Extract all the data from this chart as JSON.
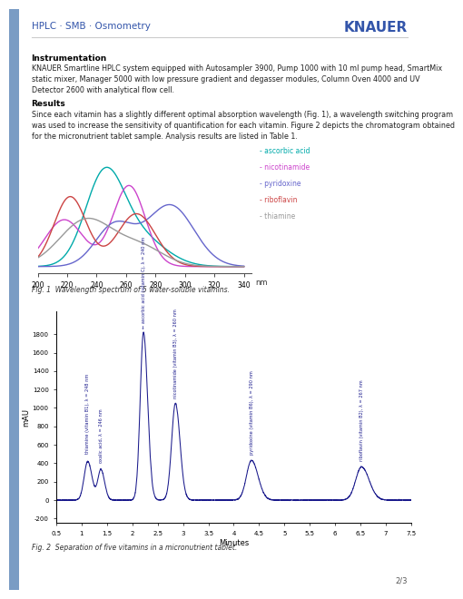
{
  "title_header": "HPLC · SMB · Osmometry",
  "instrumentation_title": "Instrumentation",
  "instrumentation_text": "KNAUER Smartline HPLC system equipped with Autosampler 3900, Pump 1000 with 10 ml pump head, SmartMix\nstatic mixer, Manager 5000 with low pressure gradient and degasser modules, Column Oven 4000 and UV\nDetector 2600 with analytical flow cell.",
  "results_title": "Results",
  "results_text": "Since each vitamin has a slightly different optimal absorption wavelength (Fig. 1), a wavelength switching program\nwas used to increase the sensitivity of quantification for each vitamin. Figure 2 depicts the chromatogram obtained\nfor the micronutrient tablet sample. Analysis results are listed in Table 1.",
  "fig1_caption": "Fig. 1  Wavelength spectrum of 5 water-soluble vitamins.",
  "fig2_caption": "Fig. 2  Separation of five vitamins in a micronutrient tablet.",
  "page_number": "2/3",
  "left_bar_color": "#7a9cc4",
  "background_color": "#ffffff",
  "header_line_color": "#cccccc",
  "spectrum_colors": {
    "ascorbic_acid": "#00aaaa",
    "nicotinamide": "#cc44cc",
    "pyridoxine": "#6666cc",
    "riboflavin": "#cc4444",
    "thiamine": "#999999"
  },
  "chromatogram_color": "#1a1a8c",
  "ylabel_chrom": "mAU",
  "xlabel_chrom": "Minutes",
  "chrom_yticks": [
    -200,
    0,
    200,
    400,
    600,
    800,
    1000,
    1200,
    1400,
    1600,
    1800
  ],
  "chrom_xticks": [
    0.5,
    1.0,
    1.5,
    2.0,
    2.5,
    3.0,
    3.5,
    4.0,
    4.5,
    5.0,
    5.5,
    6.0,
    6.5,
    7.0,
    7.5
  ],
  "spectrum_xticks": [
    200,
    220,
    240,
    260,
    280,
    300,
    320,
    340
  ],
  "spectrum_xlabel": "nm",
  "header_color": "#3355aa",
  "text_color": "#222222",
  "caption_color": "#333333"
}
